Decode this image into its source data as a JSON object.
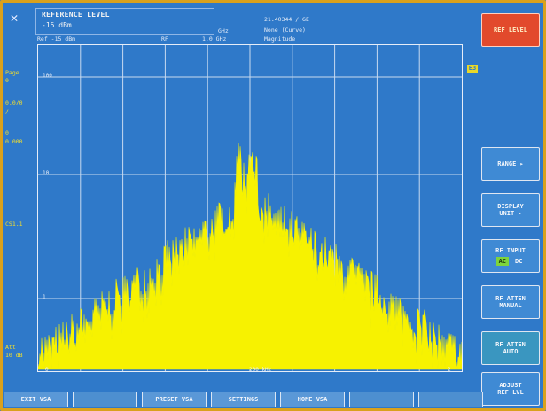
{
  "header": {
    "ref_title": "REFERENCE LEVEL",
    "ref_value": "-15 dBm",
    "ref_line": "Ref -15 dBm",
    "rf_label": "RF",
    "rf_value": "1.0 GHz",
    "unit_ghz": "GHz",
    "center_freq": "21.40344 / GE",
    "mode": "None (Curve)",
    "trace": "Magnitude"
  },
  "left_labels": [
    {
      "text": "Page"
    },
    {
      "text": "0"
    },
    {
      "text": "0.0/0"
    },
    {
      "text": "/"
    },
    {
      "text": "0"
    },
    {
      "text": "0.000"
    },
    {
      "text": "CS1.1"
    },
    {
      "text": "Att"
    },
    {
      "text": "10 dB"
    }
  ],
  "plot": {
    "y_labels": [
      "100",
      "10",
      "1"
    ],
    "x_left": "0",
    "x_center": "200 kHz",
    "x_right": "2",
    "marker_tag": "E3"
  },
  "softkeys": {
    "ref_level": "REF LEVEL",
    "range": "RANGE ▸",
    "display_unit_1": "DISPLAY",
    "display_unit_2": "UNIT ▸",
    "rf_input": "RF INPUT",
    "rf_input_ac": "AC",
    "rf_input_dc": "DC",
    "rf_atten_manual_1": "RF ATTEN",
    "rf_atten_manual_2": "MANUAL",
    "rf_atten_auto_1": "RF ATTEN",
    "rf_atten_auto_2": "AUTO",
    "adjust_ref_1": "ADJUST",
    "adjust_ref_2": "REF LVL"
  },
  "bottom_keys": {
    "exit_vsa": "EXIT VSA",
    "preset_vsa": "PRESET VSA",
    "settings": "SETTINGS",
    "home_vsa": "HOME VSA"
  },
  "colors": {
    "background": "#2f79c9",
    "trace": "#f7f200",
    "accent_red": "#e24a2c",
    "active_green": "#7ed43b"
  }
}
